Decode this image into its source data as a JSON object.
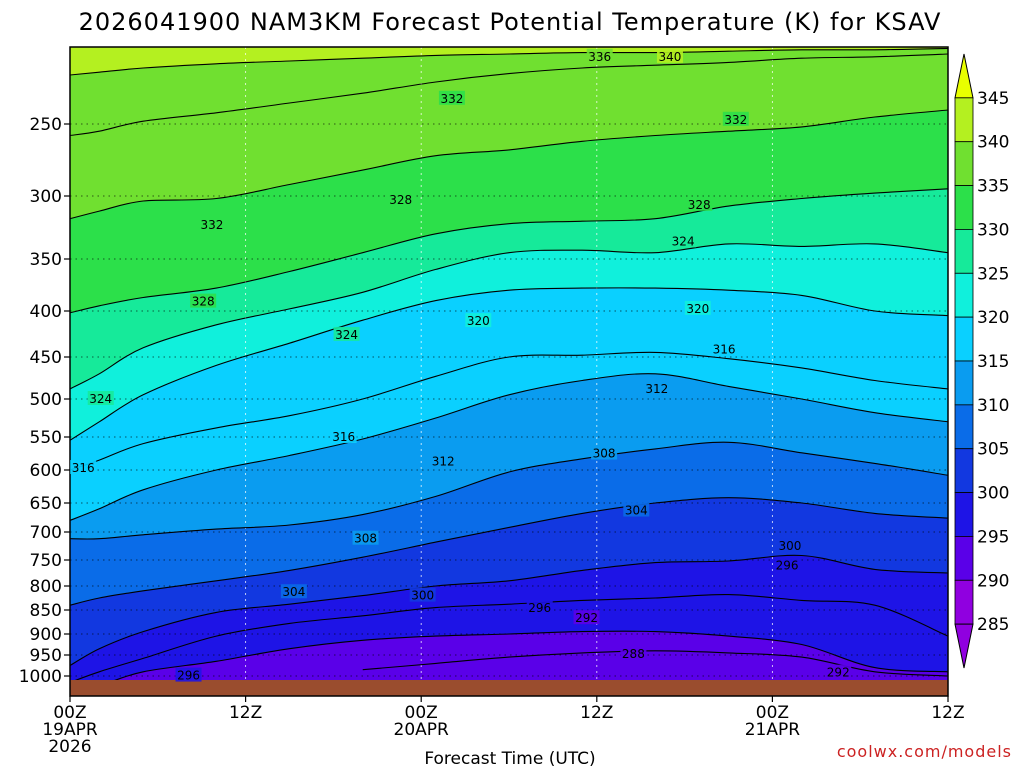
{
  "title": "2026041900 NAM3KM Forecast Potential Temperature (K) for KSAV",
  "credit": "coolwx.com/models",
  "chart_data": {
    "type": "heatmap",
    "title": "2026041900 NAM3KM Forecast Potential Temperature (K) for KSAV",
    "xlabel": "Forecast Time (UTC)",
    "ylabel": "",
    "xlim_hours": [
      0,
      60
    ],
    "pressure_range": [
      1025,
      195
    ],
    "x_ticks": [
      {
        "hour": 0,
        "lines": [
          "00Z",
          "19APR",
          "2026"
        ]
      },
      {
        "hour": 12,
        "lines": [
          "12Z"
        ]
      },
      {
        "hour": 24,
        "lines": [
          "00Z",
          "20APR"
        ]
      },
      {
        "hour": 36,
        "lines": [
          "12Z"
        ]
      },
      {
        "hour": 48,
        "lines": [
          "00Z",
          "21APR"
        ]
      },
      {
        "hour": 60,
        "lines": [
          "12Z"
        ]
      }
    ],
    "y_ticks": [
      250,
      300,
      350,
      400,
      450,
      500,
      550,
      600,
      650,
      700,
      750,
      800,
      850,
      900,
      950,
      1000
    ],
    "colorbar": {
      "labels": [
        345,
        340,
        335,
        330,
        325,
        320,
        315,
        310,
        305,
        300,
        295,
        290,
        285
      ],
      "colors": [
        "#e8ff00",
        "#b4f020",
        "#70e030",
        "#2ce04a",
        "#16ea9a",
        "#10f0dc",
        "#0ad0ff",
        "#0a9cf0",
        "#0a6ce8",
        "#1238e0",
        "#1e14e6",
        "#5a00e8",
        "#9000e0"
      ]
    },
    "contour_interval": 2,
    "series": [
      {
        "name": "theta_288",
        "values_p": [
          null,
          null,
          null,
          null,
          null,
          985,
          970,
          955,
          945,
          940,
          945,
          955,
          990,
          1000
        ]
      },
      {
        "name": "theta_292",
        "values_p": [
          1018,
          1012,
          990,
          965,
          935,
          915,
          905,
          900,
          895,
          895,
          905,
          925,
          980,
          990
        ]
      },
      {
        "name": "theta_296",
        "values_p": [
          1008,
          990,
          958,
          905,
          878,
          862,
          845,
          838,
          830,
          825,
          818,
          830,
          840,
          905
        ]
      },
      {
        "name": "theta_300",
        "values_p": [
          975,
          935,
          895,
          855,
          838,
          820,
          800,
          790,
          770,
          755,
          752,
          742,
          768,
          775
        ]
      },
      {
        "name": "theta_304",
        "values_p": [
          840,
          825,
          810,
          790,
          770,
          745,
          718,
          692,
          668,
          650,
          642,
          650,
          668,
          676
        ]
      },
      {
        "name": "theta_308",
        "values_p": [
          712,
          712,
          705,
          695,
          688,
          670,
          640,
          603,
          583,
          568,
          558,
          574,
          590,
          608
        ]
      },
      {
        "name": "theta_312",
        "values_p": [
          680,
          660,
          630,
          600,
          578,
          553,
          525,
          495,
          478,
          470,
          485,
          500,
          518,
          530
        ]
      },
      {
        "name": "theta_316",
        "values_p": [
          600,
          585,
          560,
          538,
          522,
          500,
          473,
          450,
          448,
          445,
          452,
          463,
          478,
          488
        ]
      },
      {
        "name": "theta_320",
        "values_p": [
          555,
          530,
          495,
          460,
          435,
          410,
          390,
          380,
          378,
          378,
          380,
          385,
          400,
          405
        ]
      },
      {
        "name": "theta_324",
        "values_p": [
          488,
          470,
          440,
          415,
          398,
          382,
          360,
          345,
          343,
          345,
          338,
          340,
          338,
          345
        ]
      },
      {
        "name": "theta_328",
        "values_p": [
          402,
          395,
          387,
          378,
          362,
          345,
          330,
          322,
          320,
          318,
          308,
          302,
          298,
          295
        ]
      },
      {
        "name": "theta_332",
        "values_p": [
          318,
          312,
          304,
          302,
          292,
          282,
          272,
          268,
          262,
          258,
          255,
          252,
          245,
          240
        ]
      },
      {
        "name": "theta_336",
        "values_p": [
          258,
          255,
          248,
          242,
          235,
          228,
          220,
          214,
          210,
          208,
          206,
          203,
          202,
          200
        ]
      },
      {
        "name": "theta_340",
        "values_p": [
          215,
          213,
          210,
          207,
          205,
          203,
          201,
          200,
          199,
          199,
          198,
          197,
          197,
          196
        ]
      }
    ],
    "contour_labels": [
      {
        "text": "288",
        "hour": 38.5,
        "p": 948
      },
      {
        "text": "292",
        "hour": 35.3,
        "p": 867
      },
      {
        "text": "292",
        "hour": 52.5,
        "p": 992
      },
      {
        "text": "296",
        "hour": 8.1,
        "p": 999
      },
      {
        "text": "296",
        "hour": 32.1,
        "p": 846
      },
      {
        "text": "296",
        "hour": 49.0,
        "p": 761
      },
      {
        "text": "300",
        "hour": 24.1,
        "p": 820
      },
      {
        "text": "300",
        "hour": 49.2,
        "p": 725
      },
      {
        "text": "304",
        "hour": 15.3,
        "p": 813
      },
      {
        "text": "304",
        "hour": 38.7,
        "p": 663
      },
      {
        "text": "308",
        "hour": 20.2,
        "p": 712
      },
      {
        "text": "308",
        "hour": 36.5,
        "p": 575
      },
      {
        "text": "312",
        "hour": 25.5,
        "p": 587
      },
      {
        "text": "312",
        "hour": 40.1,
        "p": 488
      },
      {
        "text": "316",
        "hour": 0.9,
        "p": 597
      },
      {
        "text": "316",
        "hour": 18.7,
        "p": 550
      },
      {
        "text": "316",
        "hour": 44.7,
        "p": 442
      },
      {
        "text": "320",
        "hour": 27.9,
        "p": 411
      },
      {
        "text": "320",
        "hour": 42.9,
        "p": 398
      },
      {
        "text": "324",
        "hour": 2.1,
        "p": 500
      },
      {
        "text": "324",
        "hour": 18.9,
        "p": 426
      },
      {
        "text": "324",
        "hour": 41.9,
        "p": 336
      },
      {
        "text": "328",
        "hour": 9.1,
        "p": 391
      },
      {
        "text": "328",
        "hour": 22.6,
        "p": 303
      },
      {
        "text": "328",
        "hour": 43.0,
        "p": 307
      },
      {
        "text": "332",
        "hour": 9.7,
        "p": 323
      },
      {
        "text": "332",
        "hour": 26.1,
        "p": 232
      },
      {
        "text": "332",
        "hour": 45.5,
        "p": 247
      },
      {
        "text": "336",
        "hour": 36.2,
        "p": 202
      },
      {
        "text": "340",
        "hour": 41.0,
        "p": 202
      }
    ]
  }
}
